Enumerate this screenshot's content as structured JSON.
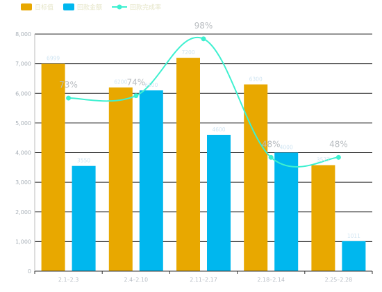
{
  "chart_data": {
    "type": "bar",
    "title": "",
    "xlabel": "",
    "ylabel": "",
    "categories": [
      "2.1–2.3",
      "2.4–2.10",
      "2.11–2.17",
      "2.18–2.14",
      "2.25–2.28"
    ],
    "series": [
      {
        "name": "目标值",
        "type": "bar",
        "color": "#e8a800",
        "values": [
          6999,
          6200,
          7200,
          6300,
          3577
        ]
      },
      {
        "name": "回款金额",
        "type": "bar",
        "color": "#00b7ee",
        "values": [
          3550,
          6100,
          4600,
          4000,
          1011
        ]
      },
      {
        "name": "回款完成率",
        "type": "line",
        "color": "#3ef0d0",
        "smooth": true,
        "values": [
          0.73,
          0.74,
          0.98,
          0.48,
          0.48
        ],
        "labels": [
          "73%",
          "74%",
          "98%",
          "48%",
          "48%"
        ]
      }
    ],
    "bar_labels": {
      "目标值": [
        "6999",
        "6200",
        "7200",
        "6300",
        "3577"
      ],
      "回款金额": [
        "3550",
        "6100",
        "4600",
        "4000",
        "1011"
      ]
    },
    "ylim": [
      0,
      8000
    ],
    "yticks": [
      0,
      1000,
      2000,
      3000,
      4000,
      5000,
      6000,
      7000,
      8000
    ],
    "ytick_labels": [
      "0",
      "1,000",
      "2,000",
      "3,000",
      "4,000",
      "5,000",
      "6,000",
      "7,000",
      "8,000"
    ],
    "legend_position": "top-left",
    "grid": true
  }
}
